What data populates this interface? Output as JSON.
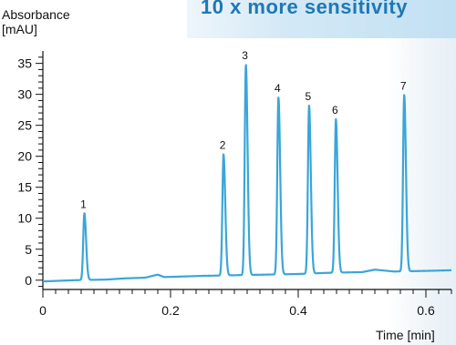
{
  "header": {
    "banner_text": "10 x more sensitivity",
    "ylabel_line1": "Absorbance",
    "ylabel_line2": "[mAU]",
    "xlabel": "Time [min]"
  },
  "chart_data": {
    "type": "line",
    "xlabel": "Time [min]",
    "ylabel": "Absorbance [mAU]",
    "xlim": [
      0,
      0.64
    ],
    "ylim": [
      -1.5,
      37
    ],
    "x_ticks": [
      0,
      0.2,
      0.4,
      0.6
    ],
    "x_tick_labels": [
      "0",
      "0.2",
      "0.4",
      "0.6"
    ],
    "y_ticks": [
      0,
      5,
      10,
      15,
      20,
      25,
      30,
      35
    ],
    "y_tick_labels": [
      "0",
      "5",
      "10",
      "15",
      "20",
      "25",
      "30",
      "35"
    ],
    "line_color": "#3aa6d8",
    "baseline": [
      [
        0.0,
        -0.2
      ],
      [
        0.05,
        0.0
      ],
      [
        0.1,
        0.1
      ],
      [
        0.13,
        0.3
      ],
      [
        0.16,
        0.4
      ],
      [
        0.18,
        0.9
      ],
      [
        0.19,
        0.5
      ],
      [
        0.25,
        0.7
      ],
      [
        0.3,
        0.8
      ],
      [
        0.35,
        0.9
      ],
      [
        0.4,
        1.0
      ],
      [
        0.45,
        1.2
      ],
      [
        0.5,
        1.3
      ],
      [
        0.52,
        1.7
      ],
      [
        0.55,
        1.4
      ],
      [
        0.6,
        1.5
      ],
      [
        0.64,
        1.6
      ]
    ],
    "peaks": [
      {
        "label": "1",
        "time": 0.065,
        "height": 10.8
      },
      {
        "label": "2",
        "time": 0.283,
        "height": 20.3
      },
      {
        "label": "3",
        "time": 0.318,
        "height": 34.8
      },
      {
        "label": "4",
        "time": 0.369,
        "height": 29.5
      },
      {
        "label": "5",
        "time": 0.417,
        "height": 28.2
      },
      {
        "label": "6",
        "time": 0.459,
        "height": 26.0
      },
      {
        "label": "7",
        "time": 0.566,
        "height": 29.9
      }
    ]
  }
}
